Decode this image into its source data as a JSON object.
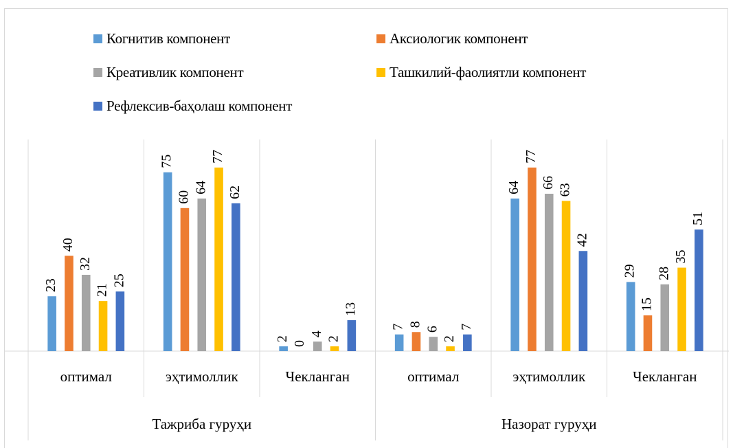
{
  "chart_data": {
    "type": "bar",
    "title": "",
    "xlabel": "",
    "ylabel": "",
    "ylim": [
      0,
      90
    ],
    "grid": false,
    "legend_position": "top",
    "groups": [
      {
        "label": "Тажриба гуруҳи",
        "categories": [
          "оптимал",
          "эҳтимоллик",
          "Чекланган"
        ]
      },
      {
        "label": "Назорат гуруҳи",
        "categories": [
          "оптимал",
          "эҳтимоллик",
          "Чекланган"
        ]
      }
    ],
    "categories": [
      "оптимал",
      "эҳтимоллик",
      "Чекланган",
      "оптимал",
      "эҳтимоллик",
      "Чекланган"
    ],
    "series": [
      {
        "name": "Когнитив компонент",
        "color": "#5b9bd5",
        "values": [
          23,
          75,
          2,
          7,
          64,
          29
        ]
      },
      {
        "name": "Аксиологик компонент",
        "color": "#ed7d31",
        "values": [
          40,
          60,
          0,
          8,
          77,
          15
        ]
      },
      {
        "name": "Креативлик компонент",
        "color": "#a5a5a5",
        "values": [
          32,
          64,
          4,
          6,
          66,
          28
        ]
      },
      {
        "name": "Ташкилий-фаолиятли компонент",
        "color": "#ffc000",
        "values": [
          21,
          77,
          2,
          2,
          63,
          35
        ]
      },
      {
        "name": "Рефлексив-баҳолаш компонент",
        "color": "#4472c4",
        "values": [
          25,
          62,
          13,
          7,
          42,
          51
        ]
      }
    ]
  }
}
